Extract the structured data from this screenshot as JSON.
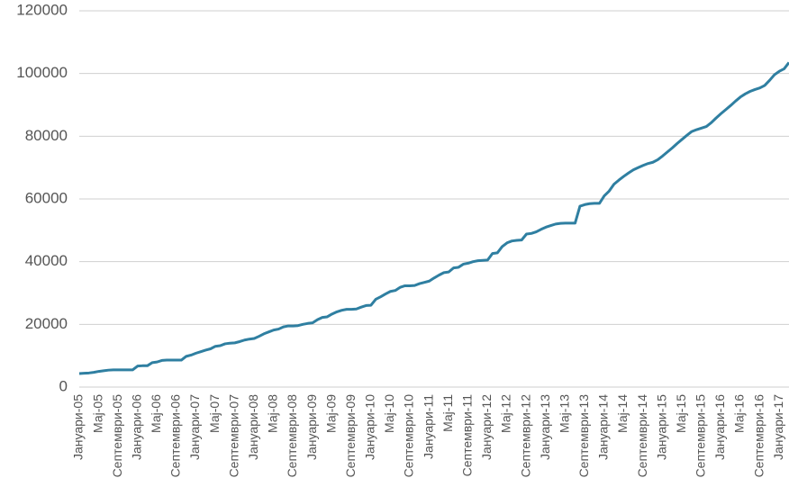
{
  "chart_data": {
    "type": "line",
    "categories": [
      "Јануари-05",
      null,
      null,
      null,
      "Мај-05",
      null,
      null,
      null,
      "Септември-05",
      null,
      null,
      null,
      "Јануари-06",
      null,
      null,
      null,
      "Мај-06",
      null,
      null,
      null,
      "Септември-06",
      null,
      null,
      null,
      "Јануари-07",
      null,
      null,
      null,
      "Мај-07",
      null,
      null,
      null,
      "Септември-07",
      null,
      null,
      null,
      "Јануари-08",
      null,
      null,
      null,
      "Мај-08",
      null,
      null,
      null,
      "Септември-08",
      null,
      null,
      null,
      "Јануари-09",
      null,
      null,
      null,
      "Мај-09",
      null,
      null,
      null,
      "Септември-09",
      null,
      null,
      null,
      "Јануари-10",
      null,
      null,
      null,
      "Мај-10",
      null,
      null,
      null,
      "Септември-10",
      null,
      null,
      null,
      "Јануари-11",
      null,
      null,
      null,
      "Мај-11",
      null,
      null,
      null,
      "Септември-11",
      null,
      null,
      null,
      "Јануари-12",
      null,
      null,
      null,
      "Мај-12",
      null,
      null,
      null,
      "Септември-12",
      null,
      null,
      null,
      "Јануари-13",
      null,
      null,
      null,
      "Мај-13",
      null,
      null,
      null,
      "Септември-13",
      null,
      null,
      null,
      "Јануари-14",
      null,
      null,
      null,
      "Мај-14",
      null,
      null,
      null,
      "Септември-14",
      null,
      null,
      null,
      "Јануари-15",
      null,
      null,
      null,
      "Мај-15",
      null,
      null,
      null,
      "Септември-15",
      null,
      null,
      null,
      "Јануари-16",
      null,
      null,
      null,
      "Мај-16",
      null,
      null,
      null,
      "Септември-16",
      null,
      null,
      null,
      "Јануари-17",
      null,
      null
    ],
    "values": [
      4300,
      4400,
      4500,
      4700,
      5000,
      5200,
      5400,
      5500,
      5500,
      5500,
      5500,
      5500,
      6700,
      6800,
      6800,
      7800,
      8000,
      8500,
      8600,
      8600,
      8600,
      8600,
      9800,
      10200,
      10800,
      11300,
      11800,
      12200,
      13000,
      13200,
      13800,
      14000,
      14100,
      14500,
      15000,
      15300,
      15500,
      16200,
      17000,
      17600,
      18200,
      18500,
      19200,
      19500,
      19500,
      19600,
      20000,
      20300,
      20500,
      21500,
      22200,
      22400,
      23300,
      24000,
      24500,
      24800,
      24800,
      24900,
      25500,
      26000,
      26100,
      28000,
      28800,
      29700,
      30500,
      30800,
      31800,
      32300,
      32300,
      32400,
      33000,
      33400,
      33800,
      34800,
      35700,
      36500,
      36700,
      38000,
      38200,
      39200,
      39500,
      40000,
      40300,
      40400,
      40500,
      42600,
      42800,
      44800,
      46000,
      46600,
      46800,
      46900,
      48800,
      49000,
      49500,
      50300,
      51000,
      51500,
      52000,
      52200,
      52300,
      52300,
      52300,
      57700,
      58200,
      58500,
      58600,
      58600,
      61000,
      62500,
      64700,
      66000,
      67200,
      68300,
      69300,
      70000,
      70700,
      71300,
      71700,
      72500,
      73700,
      75000,
      76300,
      77700,
      79000,
      80300,
      81500,
      82100,
      82600,
      83100,
      84300,
      85800,
      87200,
      88500,
      89800,
      91200,
      92500,
      93500,
      94300,
      94900,
      95400,
      96200,
      97800,
      99600,
      100700,
      101500,
      103500
    ],
    "color": "#2f7fa1",
    "ylim": [
      0,
      120000
    ],
    "yticks": [
      0,
      20000,
      40000,
      60000,
      80000,
      100000,
      120000
    ],
    "grid": true
  }
}
